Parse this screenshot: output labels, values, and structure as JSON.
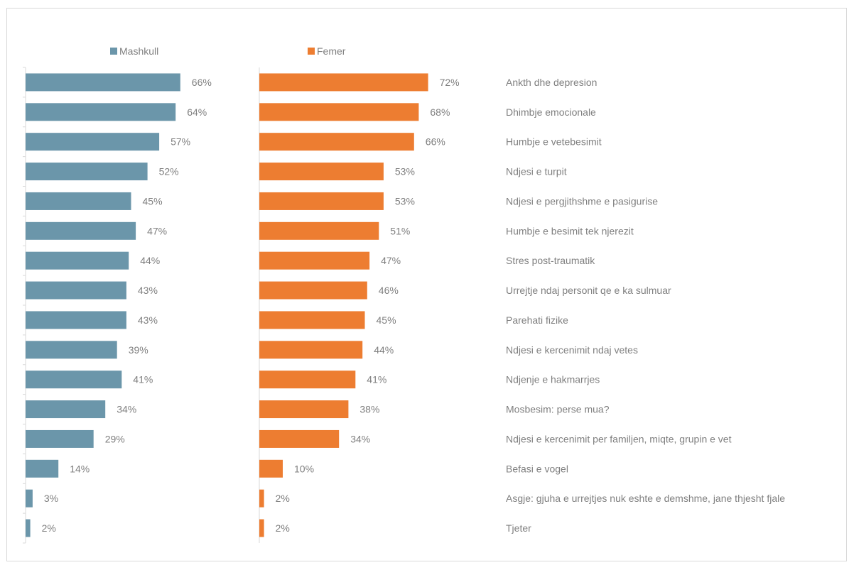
{
  "chart_data": {
    "type": "bar",
    "orientation": "horizontal",
    "value_suffix": "%",
    "categories": [
      "Ankth dhe depresion",
      "Dhimbje emocionale",
      "Humbje e vetebesimit",
      "Ndjesi e turpit",
      "Ndjesi e pergjithshme e pasigurise",
      "Humbje e besimit tek njerezit",
      "Stres post-traumatik",
      "Urrejtje ndaj personit qe e ka sulmuar",
      "Parehati fizike",
      "Ndjesi e kercenimit ndaj vetes",
      "Ndjenje e hakmarrjes",
      "Mosbesim: perse mua?",
      "Ndjesi e kercenimit per familjen, miqte, grupin e vet",
      "Befasi e vogel",
      "Asgje: gjuha e urrejtjes nuk eshte e demshme, jane thjesht fjale",
      "Tjeter"
    ],
    "series": [
      {
        "name": "Mashkull",
        "color": "#6b96aa",
        "values": [
          66,
          64,
          57,
          52,
          45,
          47,
          44,
          43,
          43,
          39,
          41,
          34,
          29,
          14,
          3,
          2
        ]
      },
      {
        "name": "Femer",
        "color": "#ed7d31",
        "values": [
          72,
          68,
          66,
          53,
          53,
          51,
          47,
          46,
          45,
          44,
          41,
          38,
          34,
          10,
          2,
          2
        ]
      }
    ],
    "legend_position": "top",
    "grid": false
  }
}
